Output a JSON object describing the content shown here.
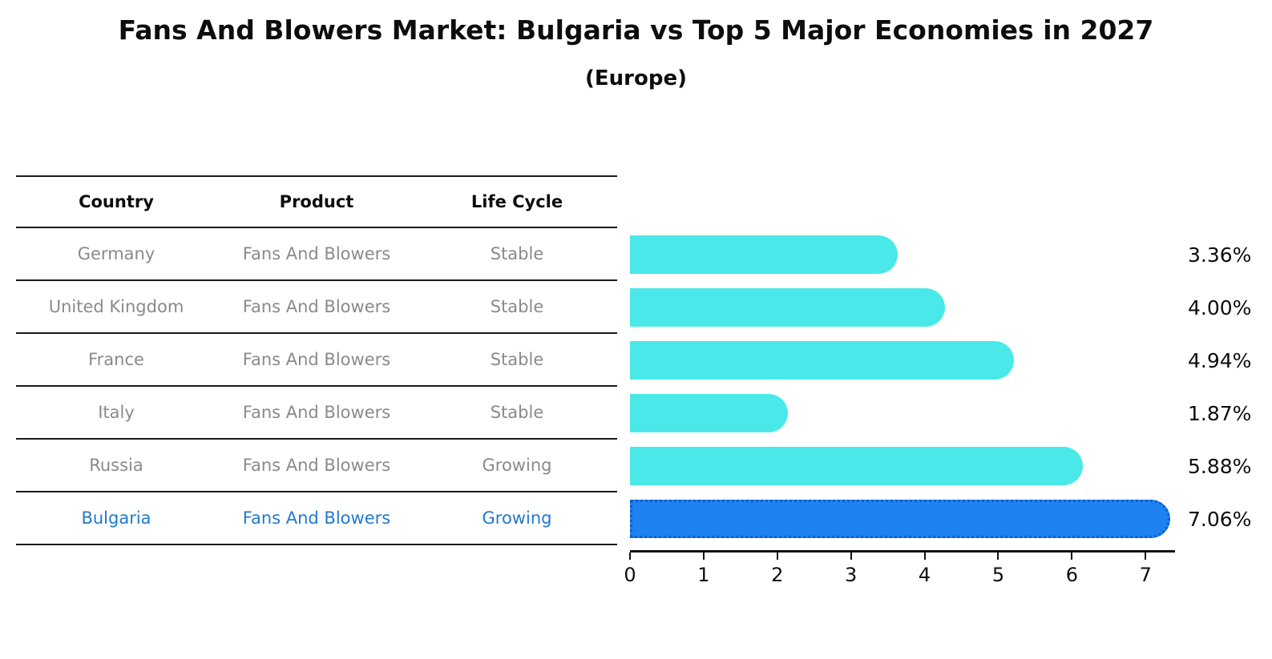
{
  "title": "Fans And Blowers Market: Bulgaria vs Top 5 Major Economies in 2027",
  "subtitle": "(Europe)",
  "table": {
    "headers": [
      "Country",
      "Product",
      "Life Cycle"
    ]
  },
  "rows": [
    {
      "country": "Germany",
      "product": "Fans And Blowers",
      "life_cycle": "Stable",
      "value": 3.36,
      "label": "3.36%",
      "highlight": false
    },
    {
      "country": "United Kingdom",
      "product": "Fans And Blowers",
      "life_cycle": "Stable",
      "value": 4.0,
      "label": "4.00%",
      "highlight": false
    },
    {
      "country": "France",
      "product": "Fans And Blowers",
      "life_cycle": "Stable",
      "value": 4.94,
      "label": "4.94%",
      "highlight": false
    },
    {
      "country": "Italy",
      "product": "Fans And Blowers",
      "life_cycle": "Stable",
      "value": 1.87,
      "label": "1.87%",
      "highlight": false
    },
    {
      "country": "Russia",
      "product": "Fans And Blowers",
      "life_cycle": "Growing",
      "value": 5.88,
      "label": "5.88%",
      "highlight": false
    },
    {
      "country": "Bulgaria",
      "product": "Fans And Blowers",
      "life_cycle": "Growing",
      "value": 7.06,
      "label": "7.06%",
      "highlight": true
    }
  ],
  "chart_data": {
    "type": "bar",
    "orientation": "horizontal",
    "title": "Fans And Blowers Market: Bulgaria vs Top 5 Major Economies in 2027",
    "subtitle": "(Europe)",
    "categories": [
      "Germany",
      "United Kingdom",
      "France",
      "Italy",
      "Russia",
      "Bulgaria"
    ],
    "values": [
      3.36,
      4.0,
      4.94,
      1.87,
      5.88,
      7.06
    ],
    "value_labels": [
      "3.36%",
      "4.00%",
      "4.94%",
      "1.87%",
      "5.88%",
      "7.06%"
    ],
    "life_cycles": [
      "Stable",
      "Stable",
      "Stable",
      "Stable",
      "Growing",
      "Growing"
    ],
    "product": "Fans And Blowers",
    "xlabel": "",
    "ylabel": "",
    "x_ticks": [
      0,
      1,
      2,
      3,
      4,
      5,
      6,
      7
    ],
    "xlim": [
      0,
      7.4
    ],
    "grid": false,
    "legend": false,
    "bar_color": "#4ae8e8",
    "highlight_color": "#1e82f2",
    "highlight_border_color": "#0d5fd0",
    "highlight_index": 5,
    "highlight_text_color": "#2279ce"
  }
}
